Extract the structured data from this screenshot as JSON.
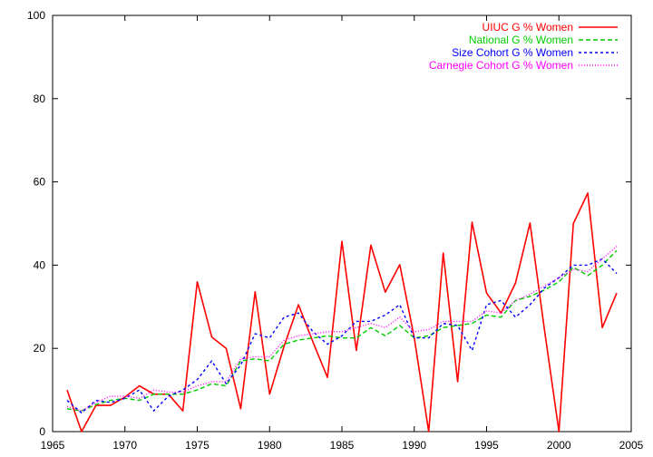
{
  "chart_data": {
    "type": "line",
    "title": "",
    "xlabel": "",
    "ylabel": "",
    "xlim": [
      1965,
      2005
    ],
    "ylim": [
      0,
      100
    ],
    "x_ticks": [
      1965,
      1970,
      1975,
      1980,
      1985,
      1990,
      1995,
      2000,
      2005
    ],
    "y_ticks": [
      0,
      20,
      40,
      60,
      80,
      100
    ],
    "grid": false,
    "legend_position": "top-right",
    "x": [
      1966,
      1967,
      1968,
      1969,
      1970,
      1971,
      1972,
      1973,
      1974,
      1975,
      1976,
      1977,
      1978,
      1979,
      1980,
      1981,
      1982,
      1983,
      1984,
      1985,
      1986,
      1987,
      1988,
      1989,
      1990,
      1991,
      1992,
      1993,
      1994,
      1995,
      1996,
      1997,
      1998,
      1999,
      2000,
      2001,
      2002,
      2003,
      2004
    ],
    "series": [
      {
        "name": "UIUC G % Women",
        "color": "#ff0000",
        "dash": "solid",
        "values": [
          10,
          0,
          6.3,
          6.3,
          8.3,
          11,
          9,
          9,
          5,
          36,
          22.7,
          20,
          5.5,
          33.6,
          9,
          20.5,
          30.5,
          21.5,
          13,
          45.7,
          19.5,
          44.8,
          33.5,
          40.1,
          22.5,
          0,
          42.9,
          12,
          50.3,
          33.3,
          28.5,
          35.7,
          50.1,
          24.5,
          0,
          50,
          57.3,
          25,
          33.3
        ]
      },
      {
        "name": "National G % Women",
        "color": "#00cc00",
        "dash": "dashed",
        "values": [
          5.5,
          5,
          6.5,
          7.5,
          8,
          7.5,
          9,
          9,
          9,
          10,
          11.5,
          11,
          17,
          17.5,
          17,
          21,
          22,
          22.5,
          23,
          22.5,
          22.5,
          25,
          23,
          25.5,
          22.5,
          23,
          25,
          25.5,
          26,
          28,
          27.5,
          31.5,
          32.5,
          34,
          36,
          39.5,
          37.5,
          40,
          43.5
        ]
      },
      {
        "name": "Size Cohort G % Women",
        "color": "#0000ff",
        "dash": "dotted-dash",
        "values": [
          7.5,
          4.5,
          7.5,
          7,
          8,
          10,
          5,
          8.5,
          10,
          12.5,
          17,
          11.5,
          16,
          23.5,
          22.5,
          27.5,
          28.5,
          24,
          21,
          23,
          26.5,
          26.5,
          28,
          30.5,
          22.5,
          22.5,
          26,
          25.5,
          19.5,
          30.5,
          31.5,
          27.5,
          30.5,
          34.5,
          37,
          40,
          40,
          41.5,
          38
        ]
      },
      {
        "name": "Carnegie Cohort G % Women",
        "color": "#ff00ff",
        "dash": "dotted",
        "values": [
          6,
          5,
          7,
          8.5,
          8.5,
          8,
          10,
          9.5,
          9.5,
          11,
          12,
          12,
          17.5,
          18,
          18,
          22,
          23,
          23.5,
          24,
          24,
          25,
          26,
          25,
          27.5,
          24,
          24.5,
          26.5,
          26.5,
          26.5,
          29,
          28.5,
          31.5,
          33,
          35,
          37,
          39,
          38.5,
          41.5,
          44.5
        ]
      }
    ]
  }
}
